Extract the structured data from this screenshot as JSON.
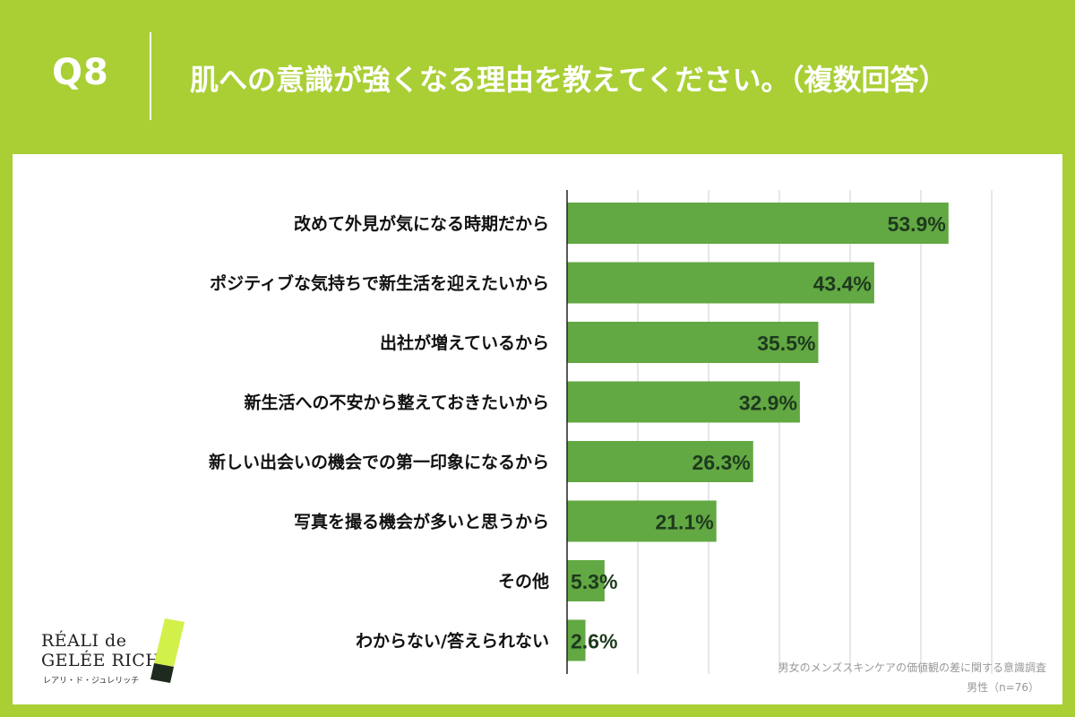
{
  "header": {
    "question_number": "Q8",
    "title": "肌への意識が強くなる理由を教えてください。（複数回答）"
  },
  "chart_data": {
    "type": "bar",
    "orientation": "horizontal",
    "categories": [
      "改めて外見が気になる時期だから",
      "ポジティブな気持ちで新生活を迎えたいから",
      "出社が増えているから",
      "新生活への不安から整えておきたいから",
      "新しい出会いの機会での第一印象になるから",
      "写真を撮る機会が多いと思うから",
      "その他",
      "わからない/答えられない"
    ],
    "values": [
      53.9,
      43.4,
      35.5,
      32.9,
      26.3,
      21.1,
      5.3,
      2.6
    ],
    "value_labels": [
      "53.9%",
      "43.4%",
      "35.5%",
      "32.9%",
      "26.3%",
      "21.1%",
      "5.3%",
      "2.6%"
    ],
    "xlim": [
      0,
      60
    ],
    "grid": true,
    "bar_color": "#62a843",
    "label_color": "#1e3a1e"
  },
  "logo": {
    "line1": "RÉALI de",
    "line2": "GELÉE RICH",
    "registered": "®",
    "line3": "レアリ・ド・ジュレリッチ"
  },
  "source": {
    "survey": "男女のメンズスキンケアの価値観の差に関する意識調査",
    "sample": "男性（n=76）"
  },
  "colors": {
    "background": "#a9cf35",
    "panel": "#ffffff",
    "bar": "#62a843",
    "mark_light": "#d2f04a",
    "mark_dark": "#1e2a1e"
  }
}
